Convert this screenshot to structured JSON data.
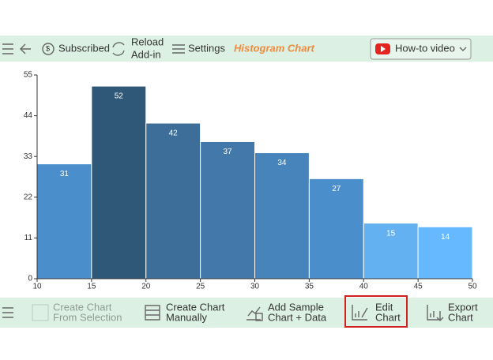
{
  "toolbar": {
    "subscribed": "Subscribed",
    "reload": [
      "Reload",
      "Add-in"
    ],
    "settings": "Settings",
    "title": "Histogram Chart",
    "video": "How-to video"
  },
  "chart_data": {
    "type": "histogram",
    "bins": [
      10,
      15,
      20,
      25,
      30,
      35,
      40,
      45,
      50
    ],
    "counts": [
      31,
      52,
      42,
      37,
      34,
      27,
      15,
      14
    ],
    "colors": [
      "#4a8fcc",
      "#2f5778",
      "#3d6e9a",
      "#4279aa",
      "#4684bb",
      "#4a8fcc",
      "#63b1f1",
      "#67b9ff"
    ],
    "xlim": [
      10,
      50
    ],
    "xticks": [
      10,
      15,
      20,
      25,
      30,
      35,
      40,
      45,
      50
    ],
    "ylim": [
      0,
      55
    ],
    "yticks": [
      0,
      11,
      22,
      33,
      44,
      55
    ]
  },
  "actions": {
    "from_selection": [
      "Create Chart",
      "From Selection"
    ],
    "manually": [
      "Create Chart",
      "Manually"
    ],
    "sample": [
      "Add Sample",
      "Chart + Data"
    ],
    "edit": [
      "Edit",
      "Chart"
    ],
    "export": [
      "Export",
      "Chart"
    ]
  }
}
